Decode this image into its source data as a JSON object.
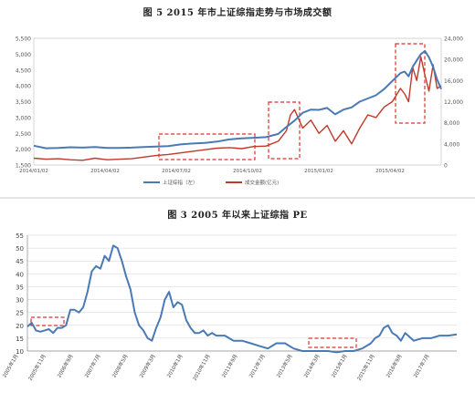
{
  "figure1_title": "图 5   2015 年市上证综指走势与市场成交额",
  "figure2_title": "图 3   2005 年以来上证综指 PE",
  "colors": {
    "index_line": "#4a7ab5",
    "volume_line": "#c0392b",
    "box": "#d9332a",
    "axis": "#888888",
    "grid": "#d0d0d0"
  },
  "chart_data": [
    {
      "type": "line",
      "title": "图 5   2015 年市上证综指走势与市场成交额",
      "x_ticks": [
        "2014/01/02",
        "2014/04/02",
        "2014/07/02",
        "2014/10/02",
        "2015/01/02",
        "2015/04/02"
      ],
      "y_left_ticks": [
        "1,500",
        "2,000",
        "2,500",
        "3,000",
        "3,500",
        "4,000",
        "4,500",
        "5,000",
        "5,500"
      ],
      "y_left_lim": [
        1500,
        5500
      ],
      "y_right_ticks": [
        "0",
        "4,000",
        "8,000",
        "12,000",
        "16,000",
        "20,000",
        "24,000"
      ],
      "y_right_lim": [
        0,
        24000
      ],
      "legend": [
        "上证综指（左）",
        "成交金额(亿元)"
      ],
      "legend_position": "bottom",
      "series": [
        {
          "name": "上证综指（左）",
          "axis": "left",
          "x": [
            0,
            0.03,
            0.06,
            0.09,
            0.12,
            0.15,
            0.18,
            0.21,
            0.24,
            0.27,
            0.3,
            0.33,
            0.36,
            0.39,
            0.42,
            0.45,
            0.48,
            0.51,
            0.54,
            0.57,
            0.6,
            0.62,
            0.64,
            0.66,
            0.68,
            0.7,
            0.72,
            0.74,
            0.76,
            0.78,
            0.8,
            0.82,
            0.84,
            0.86,
            0.88,
            0.9,
            0.91,
            0.92,
            0.93,
            0.94,
            0.95,
            0.96,
            0.97,
            0.98,
            0.99,
            1.0
          ],
          "values": [
            2110,
            2030,
            2040,
            2060,
            2050,
            2070,
            2040,
            2040,
            2050,
            2070,
            2080,
            2100,
            2150,
            2180,
            2200,
            2240,
            2310,
            2340,
            2360,
            2380,
            2480,
            2700,
            2900,
            3150,
            3250,
            3240,
            3300,
            3100,
            3250,
            3320,
            3500,
            3600,
            3700,
            3900,
            4150,
            4400,
            4450,
            4300,
            4600,
            4800,
            5000,
            5100,
            4900,
            4600,
            4200,
            3900
          ]
        },
        {
          "name": "成交金额(亿元)",
          "axis": "right",
          "x": [
            0,
            0.03,
            0.06,
            0.09,
            0.12,
            0.15,
            0.18,
            0.21,
            0.24,
            0.27,
            0.3,
            0.33,
            0.36,
            0.39,
            0.42,
            0.45,
            0.48,
            0.51,
            0.54,
            0.57,
            0.6,
            0.62,
            0.63,
            0.64,
            0.66,
            0.68,
            0.7,
            0.72,
            0.74,
            0.76,
            0.78,
            0.8,
            0.82,
            0.84,
            0.86,
            0.88,
            0.9,
            0.91,
            0.92,
            0.93,
            0.94,
            0.95,
            0.96,
            0.97,
            0.98,
            0.99,
            1.0
          ],
          "values": [
            1300,
            1100,
            1200,
            1000,
            900,
            1300,
            1000,
            1100,
            1200,
            1500,
            1800,
            2000,
            2300,
            2600,
            2900,
            3200,
            3300,
            3100,
            3500,
            3600,
            4500,
            6500,
            9500,
            10500,
            7000,
            8500,
            6000,
            7500,
            4500,
            6500,
            4000,
            7000,
            9500,
            9000,
            11000,
            12000,
            14500,
            13500,
            12000,
            18500,
            16000,
            20500,
            17000,
            14000,
            19000,
            14500,
            15000
          ]
        }
      ]
    },
    {
      "type": "line",
      "title": "图 3   2005 年以来上证综指 PE",
      "x_ticks": [
        "2005年1月",
        "2005年11月",
        "2006年9月",
        "2007年7月",
        "2008年5月",
        "2009年3月",
        "2010年1月",
        "2010年11月",
        "2011年9月",
        "2012年7月",
        "2013年5月",
        "2014年3月",
        "2015年1月",
        "2015年11月",
        "2016年9月",
        "2017年7月"
      ],
      "y_ticks": [
        "10",
        "15",
        "20",
        "25",
        "30",
        "35",
        "40",
        "45",
        "50",
        "55"
      ],
      "ylim": [
        10,
        55
      ],
      "series": [
        {
          "name": "",
          "x": [
            0,
            0.01,
            0.02,
            0.03,
            0.04,
            0.05,
            0.06,
            0.07,
            0.08,
            0.09,
            0.1,
            0.11,
            0.12,
            0.13,
            0.14,
            0.15,
            0.16,
            0.17,
            0.18,
            0.19,
            0.2,
            0.21,
            0.22,
            0.23,
            0.24,
            0.25,
            0.26,
            0.27,
            0.28,
            0.29,
            0.3,
            0.31,
            0.32,
            0.33,
            0.34,
            0.35,
            0.36,
            0.37,
            0.38,
            0.39,
            0.4,
            0.41,
            0.42,
            0.43,
            0.44,
            0.46,
            0.48,
            0.5,
            0.52,
            0.54,
            0.56,
            0.58,
            0.6,
            0.62,
            0.64,
            0.66,
            0.68,
            0.7,
            0.72,
            0.74,
            0.76,
            0.78,
            0.8,
            0.81,
            0.82,
            0.83,
            0.84,
            0.85,
            0.86,
            0.87,
            0.88,
            0.9,
            0.92,
            0.94,
            0.96,
            0.98,
            1.0
          ],
          "values": [
            19.5,
            21,
            18,
            17.5,
            18,
            18.5,
            17,
            19,
            19,
            20,
            26,
            26,
            25,
            27,
            33,
            41,
            43,
            42,
            47,
            45,
            51,
            50,
            45,
            39,
            34,
            25,
            20,
            18,
            15,
            14,
            19,
            23,
            30,
            33,
            27,
            29,
            28,
            22,
            19,
            17,
            17,
            18,
            16,
            17,
            16,
            16,
            14,
            14,
            13,
            12,
            11,
            13,
            13,
            11,
            10,
            10,
            10,
            10,
            9.5,
            10,
            10,
            11,
            13,
            15,
            16,
            19,
            20,
            17,
            16,
            14,
            17,
            14,
            15,
            15,
            16,
            16,
            16.5
          ]
        }
      ]
    }
  ]
}
